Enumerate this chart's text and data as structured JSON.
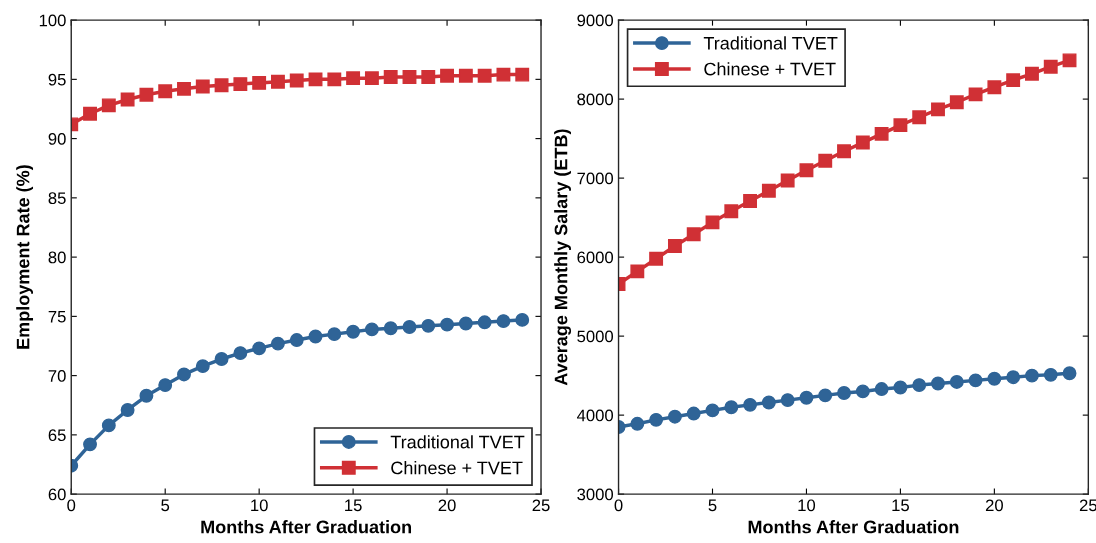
{
  "chart_data": [
    {
      "type": "line",
      "xlabel": "Months After Graduation",
      "ylabel": "Employment Rate (%)",
      "x": [
        0,
        1,
        2,
        3,
        4,
        5,
        6,
        7,
        8,
        9,
        10,
        11,
        12,
        13,
        14,
        15,
        16,
        17,
        18,
        19,
        20,
        21,
        22,
        23,
        24
      ],
      "series": [
        {
          "name": "Traditional TVET",
          "color": "#2f6497",
          "marker": "circle",
          "values": [
            62.4,
            64.2,
            65.8,
            67.1,
            68.3,
            69.2,
            70.1,
            70.8,
            71.4,
            71.9,
            72.3,
            72.7,
            73.0,
            73.3,
            73.5,
            73.7,
            73.9,
            74.0,
            74.1,
            74.2,
            74.3,
            74.4,
            74.5,
            74.6,
            74.7
          ]
        },
        {
          "name": "Chinese + TVET",
          "color": "#d03035",
          "marker": "square",
          "values": [
            91.2,
            92.1,
            92.8,
            93.3,
            93.7,
            94.0,
            94.2,
            94.4,
            94.5,
            94.6,
            94.7,
            94.8,
            94.9,
            95.0,
            95.0,
            95.1,
            95.1,
            95.2,
            95.2,
            95.2,
            95.3,
            95.3,
            95.3,
            95.4,
            95.4
          ]
        }
      ],
      "xlim": [
        0,
        25
      ],
      "xticks": [
        0,
        5,
        10,
        15,
        20,
        25
      ],
      "ylim": [
        60,
        100
      ],
      "yticks": [
        60,
        65,
        70,
        75,
        80,
        85,
        90,
        95,
        100
      ],
      "grid": false,
      "legend": "bottom right",
      "line_style": "solid"
    },
    {
      "type": "line",
      "xlabel": "Months After Graduation",
      "ylabel": "Average Monthly Salary (ETB)",
      "x": [
        0,
        1,
        2,
        3,
        4,
        5,
        6,
        7,
        8,
        9,
        10,
        11,
        12,
        13,
        14,
        15,
        16,
        17,
        18,
        19,
        20,
        21,
        22,
        23,
        24
      ],
      "series": [
        {
          "name": "Traditional TVET",
          "color": "#2f6497",
          "marker": "circle",
          "values": [
            3850,
            3890,
            3940,
            3980,
            4020,
            4060,
            4100,
            4130,
            4160,
            4190,
            4220,
            4250,
            4280,
            4300,
            4330,
            4350,
            4380,
            4400,
            4420,
            4440,
            4460,
            4480,
            4500,
            4510,
            4530
          ]
        },
        {
          "name": "Chinese + TVET",
          "color": "#d03035",
          "marker": "square",
          "values": [
            5660,
            5820,
            5980,
            6140,
            6290,
            6440,
            6580,
            6710,
            6840,
            6970,
            7100,
            7220,
            7340,
            7450,
            7560,
            7670,
            7770,
            7870,
            7960,
            8060,
            8150,
            8240,
            8320,
            8410,
            8490
          ]
        }
      ],
      "xlim": [
        0,
        25
      ],
      "xticks": [
        0,
        5,
        10,
        15,
        20,
        25
      ],
      "ylim": [
        3000,
        9000
      ],
      "yticks": [
        3000,
        4000,
        5000,
        6000,
        7000,
        8000,
        9000
      ],
      "grid": false,
      "legend": "top left",
      "line_style": "solid"
    }
  ]
}
